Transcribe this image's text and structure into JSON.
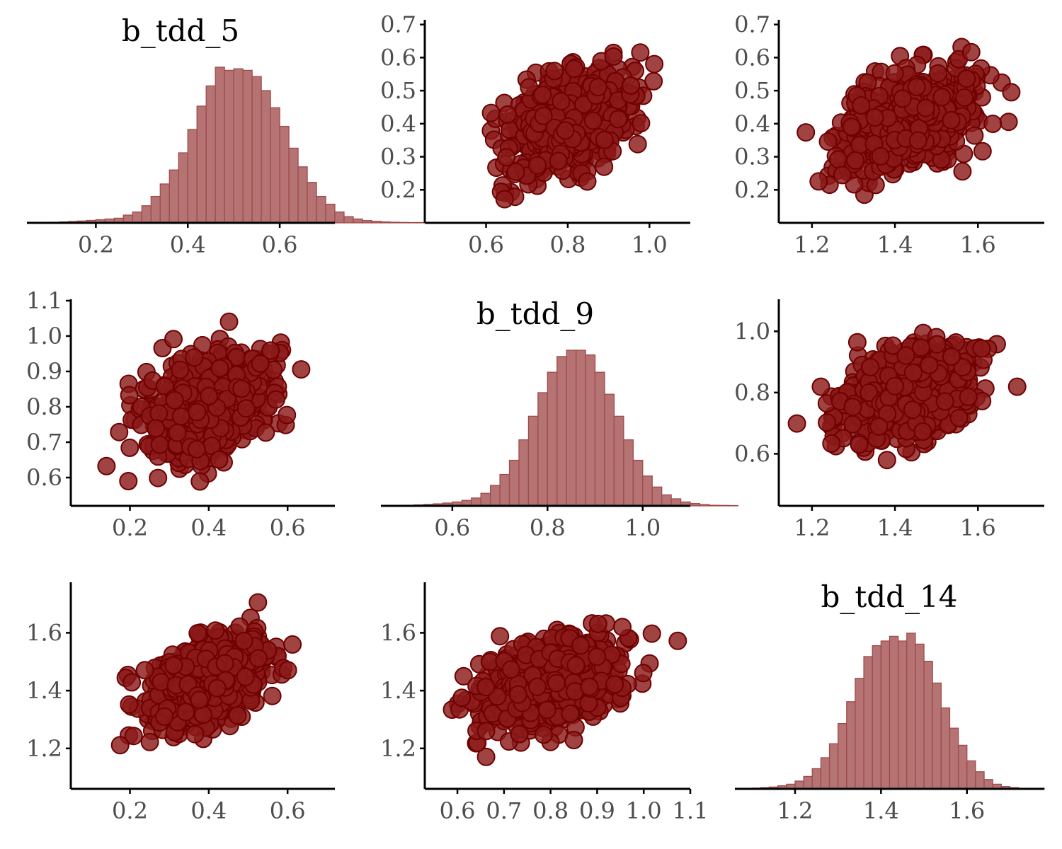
{
  "colors": {
    "hist_fill": "#b57373",
    "hist_stroke": "#a04a4a",
    "point_fill": "#8b1a1a",
    "point_stroke": "#6e0000",
    "axis": "#000000",
    "tick_label": "#4d4d4d"
  },
  "chart_data": [
    {
      "id": "p11",
      "type": "bar",
      "role": "histogram",
      "title": "b_tdd_5",
      "xlim": [
        0.05,
        0.72
      ],
      "xticks": [
        0.2,
        0.4,
        0.6
      ],
      "xtick_labels": [
        "0.2",
        "0.4",
        "0.6"
      ],
      "bin_start": 0.06,
      "bin_width": 0.02,
      "counts": [
        0.2,
        0.3,
        0.4,
        0.6,
        0.9,
        1.2,
        1.6,
        2,
        2.5,
        3,
        5,
        7,
        11,
        17,
        25,
        34,
        45,
        60,
        75,
        88,
        100,
        98,
        99,
        98,
        94,
        85,
        74,
        62,
        48,
        36,
        26,
        17,
        12,
        7,
        4,
        2.5,
        1.5,
        1,
        0.6,
        0.4,
        0.3,
        0.2,
        0.2
      ]
    },
    {
      "id": "p12",
      "type": "scatter",
      "title": "",
      "xlim": [
        0.45,
        1.1
      ],
      "ylim": [
        0.1,
        0.71
      ],
      "xticks": [
        0.6,
        0.8,
        1.0
      ],
      "xtick_labels": [
        "0.6",
        "0.8",
        "1.0"
      ],
      "yticks": [
        0.2,
        0.3,
        0.4,
        0.5,
        0.6,
        0.7
      ],
      "ytick_labels": [
        "0.2",
        "0.3",
        "0.4",
        "0.5",
        "0.6",
        "0.7"
      ],
      "x_param": "b_tdd_9",
      "y_param": "b_tdd_5"
    },
    {
      "id": "p13",
      "type": "scatter",
      "title": "",
      "xlim": [
        1.12,
        1.76
      ],
      "ylim": [
        0.1,
        0.71
      ],
      "xticks": [
        1.2,
        1.4,
        1.6
      ],
      "xtick_labels": [
        "1.2",
        "1.4",
        "1.6"
      ],
      "yticks": [
        0.2,
        0.3,
        0.4,
        0.5,
        0.6,
        0.7
      ],
      "ytick_labels": [
        "0.2",
        "0.3",
        "0.4",
        "0.5",
        "0.6",
        "0.7"
      ],
      "x_param": "b_tdd_14",
      "y_param": "b_tdd_5"
    },
    {
      "id": "p21",
      "type": "scatter",
      "title": "",
      "xlim": [
        0.05,
        0.72
      ],
      "ylim": [
        0.52,
        1.1
      ],
      "xticks": [
        0.2,
        0.4,
        0.6
      ],
      "xtick_labels": [
        "0.2",
        "0.4",
        "0.6"
      ],
      "yticks": [
        0.6,
        0.7,
        0.8,
        0.9,
        1.0,
        1.1
      ],
      "ytick_labels": [
        "0.6",
        "0.7",
        "0.8",
        "0.9",
        "1.0",
        "1.1"
      ],
      "x_param": "b_tdd_5",
      "y_param": "b_tdd_9"
    },
    {
      "id": "p22",
      "type": "bar",
      "role": "histogram",
      "title": "b_tdd_9",
      "xlim": [
        0.45,
        1.1
      ],
      "xticks": [
        0.6,
        0.8,
        1.0
      ],
      "xtick_labels": [
        "0.6",
        "0.8",
        "1.0"
      ],
      "bin_start": 0.46,
      "bin_width": 0.02,
      "counts": [
        0.2,
        0.3,
        0.4,
        0.6,
        0.9,
        1.3,
        1.8,
        2.5,
        3.5,
        5,
        8,
        13,
        20,
        29,
        42,
        57,
        72,
        85,
        95,
        99,
        99,
        96,
        85,
        71,
        57,
        42,
        29,
        19,
        12,
        7,
        4.5,
        2.5,
        1.5,
        0.8,
        0.4,
        0.3,
        0.2
      ]
    },
    {
      "id": "p23",
      "type": "scatter",
      "title": "",
      "xlim": [
        1.12,
        1.76
      ],
      "ylim": [
        0.43,
        1.1
      ],
      "xticks": [
        1.2,
        1.4,
        1.6
      ],
      "xtick_labels": [
        "1.2",
        "1.4",
        "1.6"
      ],
      "yticks": [
        0.6,
        0.8,
        1.0
      ],
      "ytick_labels": [
        "0.6",
        "0.8",
        "1.0"
      ],
      "x_param": "b_tdd_14",
      "y_param": "b_tdd_9"
    },
    {
      "id": "p31",
      "type": "scatter",
      "title": "",
      "xlim": [
        0.05,
        0.72
      ],
      "ylim": [
        1.06,
        1.77
      ],
      "xticks": [
        0.2,
        0.4,
        0.6
      ],
      "xtick_labels": [
        "0.2",
        "0.4",
        "0.6"
      ],
      "yticks": [
        1.2,
        1.4,
        1.6
      ],
      "ytick_labels": [
        "1.2",
        "1.4",
        "1.6"
      ],
      "x_param": "b_tdd_5",
      "y_param": "b_tdd_14"
    },
    {
      "id": "p32",
      "type": "scatter",
      "title": "",
      "xlim": [
        0.53,
        1.1
      ],
      "ylim": [
        1.06,
        1.77
      ],
      "xticks": [
        0.6,
        0.7,
        0.8,
        0.9,
        1.0,
        1.1
      ],
      "xtick_labels": [
        "0.6",
        "0.7",
        "0.8",
        "0.9",
        "1.0",
        "1.1"
      ],
      "yticks": [
        1.2,
        1.4,
        1.6
      ],
      "ytick_labels": [
        "1.2",
        "1.4",
        "1.6"
      ],
      "x_param": "b_tdd_9",
      "y_param": "b_tdd_14"
    },
    {
      "id": "p33",
      "type": "bar",
      "role": "histogram",
      "title": "b_tdd_14",
      "xlim": [
        1.06,
        1.78
      ],
      "xticks": [
        1.2,
        1.4,
        1.6
      ],
      "xtick_labels": [
        "1.2",
        "1.4",
        "1.6"
      ],
      "bin_start": 1.08,
      "bin_width": 0.02,
      "counts": [
        0.3,
        0.5,
        0.8,
        1.2,
        2,
        3,
        5,
        8,
        13,
        20,
        29,
        42,
        56,
        71,
        85,
        92,
        95,
        98,
        95,
        100,
        93,
        82,
        68,
        52,
        39,
        28,
        18,
        11,
        6,
        3,
        1.5,
        0.8,
        0.4,
        0.2,
        0.2
      ]
    }
  ]
}
